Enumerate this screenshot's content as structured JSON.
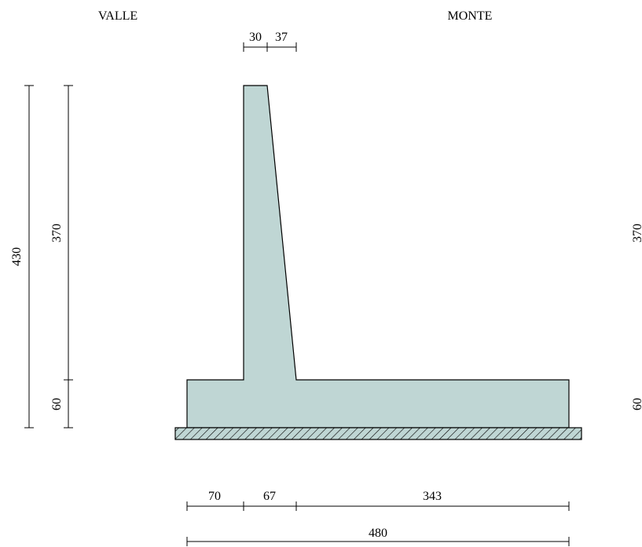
{
  "labels": {
    "downstream": "VALLE",
    "upstream": "MONTE"
  },
  "dimensions": {
    "top_left": "30",
    "top_right": "37",
    "total_height": "430",
    "stem_height_left": "370",
    "stem_height_right": "370",
    "base_height_left": "60",
    "base_height_right": "60",
    "toe": "70",
    "stem_base": "67",
    "heel": "343",
    "total_width": "480"
  },
  "colors": {
    "concrete": "#bfd6d4",
    "outline": "#000000",
    "hatch": "#000000"
  }
}
